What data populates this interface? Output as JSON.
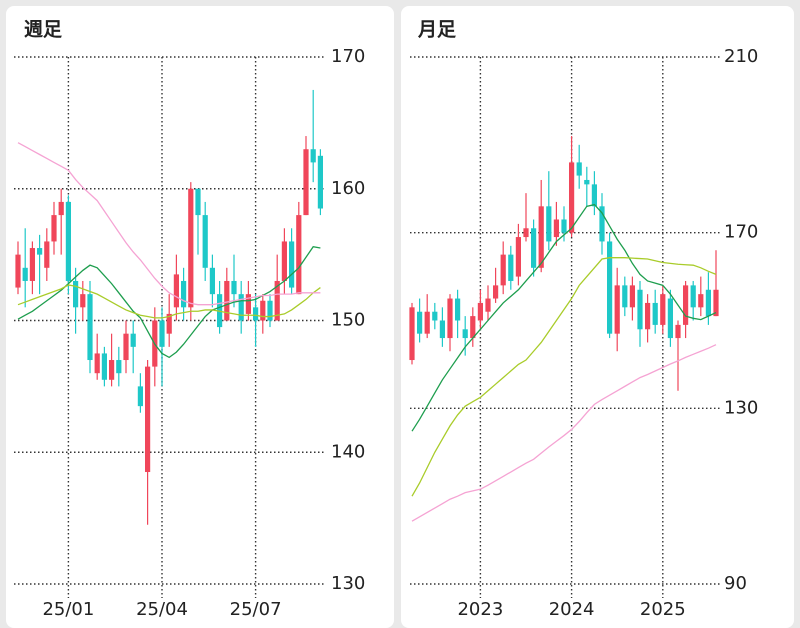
{
  "chart_data": [
    {
      "type": "candlestick",
      "title": "週足",
      "categories": [
        null,
        null,
        null,
        null,
        null,
        null,
        null,
        "25/01",
        null,
        null,
        null,
        null,
        null,
        null,
        null,
        null,
        null,
        null,
        null,
        null,
        "25/04",
        null,
        null,
        null,
        null,
        null,
        null,
        null,
        null,
        null,
        null,
        null,
        null,
        "25/07",
        null,
        null,
        null,
        null,
        null,
        null,
        null,
        null,
        null
      ],
      "open": [
        152.5,
        154,
        153,
        155.5,
        154,
        156,
        158,
        159,
        153,
        151,
        152,
        146,
        147.5,
        145.5,
        147,
        147,
        149,
        145,
        138.5,
        146.5,
        150,
        149,
        151,
        153,
        151,
        160,
        158,
        154,
        152,
        150,
        153,
        152,
        150.5,
        151,
        150,
        151.5,
        150,
        153,
        156,
        152,
        158,
        163,
        162.5
      ],
      "high": [
        156,
        157,
        156,
        156.5,
        157,
        159,
        160,
        159.5,
        154,
        153,
        153,
        149,
        148,
        149,
        148,
        150,
        150,
        146,
        147,
        151,
        151,
        152,
        155,
        154,
        160.5,
        160,
        159,
        155,
        153,
        154,
        155,
        153,
        153,
        152,
        152,
        152,
        155,
        157,
        157,
        159,
        164,
        167.5,
        163
      ],
      "low": [
        152,
        151,
        152,
        152,
        153,
        155,
        155,
        152,
        149,
        150,
        146,
        145.5,
        145,
        145,
        145,
        146,
        146,
        143,
        134.5,
        145,
        145,
        148,
        150,
        150,
        150,
        155,
        153,
        151,
        149,
        150,
        151,
        149,
        150,
        148,
        149,
        149.5,
        150,
        152,
        152,
        152,
        158,
        160.5,
        158
      ],
      "close": [
        155,
        153,
        155.5,
        155,
        156,
        158,
        159,
        153,
        151,
        152,
        147,
        147.5,
        145.5,
        147,
        146,
        149,
        148,
        143.5,
        146.5,
        150,
        148,
        150.5,
        153.5,
        151,
        160,
        158,
        154,
        152,
        149.5,
        153,
        152,
        150,
        152,
        150,
        151.5,
        150,
        153,
        156,
        152.5,
        158,
        163,
        162,
        158.5
      ],
      "up_color": "#f0465a",
      "down_color": "#1ec8c8",
      "lines": [
        {
          "color": "#1e9e4e",
          "values": [
            150.1,
            150.4,
            150.7,
            151.1,
            151.5,
            151.9,
            152.3,
            152.8,
            153.3,
            153.8,
            154.2,
            154.0,
            153.4,
            152.8,
            152.1,
            151.4,
            150.7,
            150.2,
            149.2,
            148.2,
            147.5,
            147.2,
            147.6,
            148.2,
            148.9,
            149.6,
            150.3,
            150.8,
            151.0,
            151.2,
            151.4,
            151.5,
            151.5,
            151.6,
            151.9,
            152.2,
            152.6,
            153.0,
            153.5,
            154.0,
            154.8,
            155.6,
            155.5
          ]
        },
        {
          "color": "#a9cc2a",
          "values": [
            151.2,
            151.4,
            151.6,
            151.8,
            152.0,
            152.2,
            152.4,
            152.7,
            152.6,
            152.4,
            152.2,
            152.0,
            151.7,
            151.4,
            151.1,
            150.8,
            150.6,
            150.4,
            150.3,
            150.2,
            150.2,
            150.3,
            150.5,
            150.6,
            150.7,
            150.7,
            150.8,
            150.8,
            150.7,
            150.6,
            150.5,
            150.4,
            150.4,
            150.4,
            150.3,
            150.3,
            150.4,
            150.5,
            150.8,
            151.2,
            151.6,
            152.1,
            152.5
          ]
        },
        {
          "color": "#f5a3d3",
          "values": [
            163.5,
            163.2,
            162.9,
            162.6,
            162.3,
            162.0,
            161.7,
            161.4,
            160.7,
            160.1,
            159.6,
            159.1,
            158.3,
            157.5,
            156.7,
            155.9,
            155.2,
            154.6,
            153.9,
            153.2,
            152.6,
            152.1,
            151.8,
            151.5,
            151.3,
            151.2,
            151.2,
            151.2,
            151.3,
            151.4,
            151.5,
            151.6,
            151.7,
            151.8,
            151.9,
            151.9,
            152.0,
            152.0,
            152.0,
            152.1,
            152.1,
            152.1,
            152.1
          ]
        }
      ],
      "ylim": [
        130,
        170
      ],
      "yticks": [
        170,
        160,
        150,
        140,
        130
      ],
      "grid": true
    },
    {
      "type": "candlestick",
      "title": "月足",
      "categories": [
        null,
        null,
        null,
        null,
        null,
        null,
        null,
        null,
        null,
        "2023",
        null,
        null,
        null,
        null,
        null,
        null,
        null,
        null,
        null,
        null,
        null,
        "2024",
        null,
        null,
        null,
        null,
        null,
        null,
        null,
        null,
        null,
        null,
        null,
        "2025",
        null,
        null,
        null,
        null,
        null,
        null,
        null
      ],
      "open": [
        141,
        152,
        147,
        152,
        150,
        146,
        155,
        148,
        146,
        150,
        152,
        155,
        158,
        165,
        160,
        169,
        171,
        162,
        176,
        169,
        173,
        170,
        186,
        182,
        181,
        176,
        168,
        147,
        158,
        153,
        157,
        148,
        154,
        149,
        155,
        146,
        149,
        158,
        153,
        157,
        151
      ],
      "high": [
        154,
        155,
        156,
        154,
        153,
        156,
        157,
        151,
        153,
        157,
        158,
        162,
        168,
        167,
        172,
        179,
        173,
        182,
        184,
        177,
        176,
        192,
        190,
        185,
        184,
        179,
        170,
        162,
        160,
        160,
        159,
        156,
        157,
        158,
        157,
        150,
        159,
        159,
        160,
        161,
        166
      ],
      "low": [
        140,
        145,
        146,
        148,
        144,
        143,
        146,
        142,
        144,
        148,
        150,
        154,
        156,
        157,
        158,
        168,
        160,
        161,
        166,
        167,
        168,
        169,
        180,
        176,
        174,
        165,
        146,
        143,
        151,
        150,
        144,
        145,
        147,
        147,
        144,
        134,
        146,
        150,
        151,
        149,
        151
      ],
      "close": [
        153,
        147,
        152,
        150,
        146,
        155,
        150,
        146,
        151,
        154,
        155,
        158,
        165,
        159,
        169,
        171,
        162,
        176,
        168,
        173,
        170,
        186,
        183,
        181,
        176,
        168,
        147,
        158,
        153,
        158,
        148,
        154,
        149,
        156,
        146,
        149,
        158,
        153,
        156,
        151,
        157
      ],
      "up_color": "#f0465a",
      "down_color": "#1ec8c8",
      "lines": [
        {
          "color": "#1e9e4e",
          "values": [
            124.8,
            127.5,
            130.5,
            133.5,
            136.5,
            139,
            141.5,
            144,
            146,
            148,
            150,
            152,
            154,
            155.5,
            157,
            159,
            161,
            163,
            165.5,
            168,
            169.5,
            171,
            173.5,
            176,
            176.4,
            174.5,
            171.5,
            168.5,
            166,
            163,
            160.5,
            159,
            158.5,
            158,
            156,
            153.5,
            151,
            150.5,
            150.2,
            151,
            151.8
          ]
        },
        {
          "color": "#a9cc2a",
          "values": [
            110,
            113,
            116.5,
            120,
            123,
            126,
            128.5,
            130.5,
            131.5,
            132.5,
            134,
            135.5,
            137,
            138.5,
            140,
            141,
            143,
            145,
            147.5,
            150,
            152.5,
            155,
            158,
            160,
            162,
            164,
            164.3,
            164.3,
            164.3,
            164.2,
            164.1,
            164,
            163.6,
            163.2,
            163,
            162.8,
            162.7,
            162.6,
            162,
            161.2,
            160.5
          ]
        },
        {
          "color": "#f5a3d3",
          "values": [
            104.3,
            105.3,
            106.3,
            107.3,
            108.3,
            109.3,
            110,
            110.8,
            111.2,
            111.6,
            112.5,
            113.5,
            114.5,
            115.5,
            116.5,
            117.5,
            118.4,
            119.8,
            121.2,
            122.5,
            123.8,
            125.2,
            127,
            129,
            130.9,
            132,
            133,
            134,
            135,
            136,
            137,
            137.7,
            138.5,
            139.3,
            140.1,
            140.8,
            141.6,
            142.3,
            143,
            143.7,
            144.5
          ]
        }
      ],
      "ylim": [
        90,
        210
      ],
      "yticks": [
        210,
        170,
        130,
        90
      ],
      "grid": true
    }
  ]
}
